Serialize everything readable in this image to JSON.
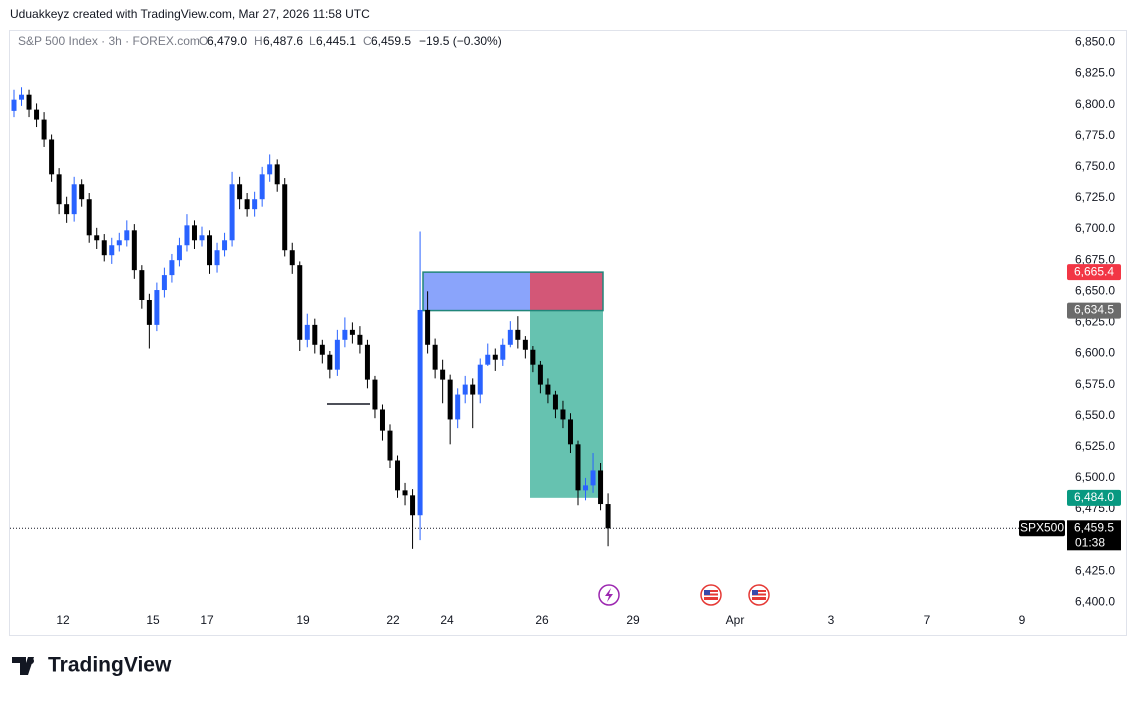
{
  "header": {
    "credit": "Uduakkeyz created with TradingView.com, Mar 27, 2026 11:58 UTC"
  },
  "chart_data": {
    "type": "candlestick",
    "symbol": "S&P 500 Index · 3h · FOREX.com",
    "ohlc_legend": {
      "o_key": "O",
      "o": "6,479.0",
      "h_key": "H",
      "h": "6,487.6",
      "l_key": "L",
      "l": "6,445.1",
      "c_key": "C",
      "c": "6,459.5",
      "change": "−19.5 (−0.30%)"
    },
    "up_color": "#2962ff",
    "down_color": "#000000",
    "open": [
      6795,
      6804,
      6808,
      6796,
      6788,
      6772,
      6744,
      6720,
      6712,
      6736,
      6724,
      6695,
      6691,
      6679,
      6687,
      6691,
      6699,
      6667,
      6643,
      6623,
      6651,
      6663,
      6675,
      6687,
      6703,
      6691,
      6695,
      6671,
      6683,
      6691,
      6736,
      6724,
      6716,
      6724,
      6744,
      6752,
      6736,
      6683,
      6671,
      6611,
      6623,
      6607,
      6599,
      6587,
      6611,
      6619,
      6615,
      6607,
      6579,
      6555,
      6538,
      6514,
      6490,
      6486,
      6470,
      6635,
      6607,
      6587,
      6579,
      6547,
      6567,
      6575,
      6567,
      6591,
      6599,
      6595,
      6607,
      6619,
      6611,
      6603,
      6591,
      6575,
      6567,
      6555,
      6547,
      6527,
      6490,
      6494,
      6506,
      6479
    ],
    "high": [
      6812,
      6814,
      6812,
      6801,
      6794,
      6776,
      6749,
      6726,
      6742,
      6740,
      6729,
      6701,
      6696,
      6693,
      6697,
      6707,
      6704,
      6671,
      6648,
      6657,
      6669,
      6680,
      6693,
      6712,
      6707,
      6702,
      6699,
      6689,
      6697,
      6746,
      6742,
      6729,
      6730,
      6750,
      6760,
      6756,
      6741,
      6689,
      6674,
      6632,
      6628,
      6611,
      6602,
      6619,
      6629,
      6625,
      6622,
      6611,
      6582,
      6559,
      6543,
      6518,
      6496,
      6491,
      6698,
      6650,
      6612,
      6595,
      6583,
      6572,
      6582,
      6580,
      6596,
      6608,
      6604,
      6612,
      6626,
      6630,
      6614,
      6606,
      6594,
      6580,
      6570,
      6562,
      6552,
      6530,
      6500,
      6520,
      6512,
      6487.6
    ],
    "low": [
      6790,
      6799,
      6790,
      6782,
      6766,
      6738,
      6712,
      6705,
      6706,
      6718,
      6689,
      6684,
      6674,
      6672,
      6682,
      6686,
      6660,
      6636,
      6604,
      6618,
      6645,
      6657,
      6670,
      6682,
      6684,
      6686,
      6664,
      6665,
      6678,
      6686,
      6716,
      6710,
      6710,
      6718,
      6738,
      6730,
      6678,
      6664,
      6602,
      6605,
      6600,
      6592,
      6580,
      6582,
      6605,
      6608,
      6600,
      6572,
      6548,
      6530,
      6508,
      6484,
      6478,
      6443,
      6450,
      6600,
      6580,
      6560,
      6527,
      6540,
      6560,
      6540,
      6560,
      6590,
      6586,
      6590,
      6605,
      6604,
      6596,
      6585,
      6568,
      6560,
      6548,
      6540,
      6520,
      6478,
      6482,
      6488,
      6474,
      6445.1
    ],
    "close": [
      6804,
      6808,
      6796,
      6788,
      6772,
      6744,
      6720,
      6712,
      6736,
      6724,
      6695,
      6691,
      6679,
      6687,
      6691,
      6699,
      6667,
      6643,
      6623,
      6651,
      6663,
      6675,
      6687,
      6703,
      6691,
      6695,
      6671,
      6683,
      6691,
      6736,
      6724,
      6716,
      6724,
      6744,
      6752,
      6736,
      6683,
      6671,
      6611,
      6623,
      6607,
      6599,
      6587,
      6611,
      6619,
      6615,
      6607,
      6579,
      6555,
      6538,
      6514,
      6490,
      6486,
      6470,
      6635,
      6607,
      6587,
      6579,
      6547,
      6567,
      6575,
      6567,
      6591,
      6599,
      6595,
      6607,
      6619,
      6611,
      6603,
      6591,
      6575,
      6567,
      6555,
      6547,
      6527,
      6490,
      6494,
      6506,
      6479,
      6459.5
    ],
    "position": {
      "stop": 6665.4,
      "entry": 6634.5,
      "target": 6484.0,
      "value_labels": {
        "stop": "6,665.4",
        "entry": "6,634.5",
        "target": "6,484.0"
      }
    },
    "last_price": {
      "ticker": "SPX500",
      "value": 6459.5,
      "value_label": "6,459.5",
      "countdown": "01:38"
    },
    "ylim": [
      6385,
      6860
    ],
    "yticks": [
      {
        "value": 6400,
        "label": "6,400.0"
      },
      {
        "value": 6425,
        "label": "6,425.0"
      },
      {
        "value": 6450,
        "label": "6,450.0"
      },
      {
        "value": 6475,
        "label": "6,475.0"
      },
      {
        "value": 6500,
        "label": "6,500.0"
      },
      {
        "value": 6525,
        "label": "6,525.0"
      },
      {
        "value": 6550,
        "label": "6,550.0"
      },
      {
        "value": 6575,
        "label": "6,575.0"
      },
      {
        "value": 6600,
        "label": "6,600.0"
      },
      {
        "value": 6625,
        "label": "6,625.0"
      },
      {
        "value": 6650,
        "label": "6,650.0"
      },
      {
        "value": 6675,
        "label": "6,675.0"
      },
      {
        "value": 6700,
        "label": "6,700.0"
      },
      {
        "value": 6725,
        "label": "6,725.0"
      },
      {
        "value": 6750,
        "label": "6,750.0"
      },
      {
        "value": 6775,
        "label": "6,775.0"
      },
      {
        "value": 6800,
        "label": "6,800.0"
      },
      {
        "value": 6825,
        "label": "6,825.0"
      },
      {
        "value": 6850,
        "label": "6,850.0"
      }
    ],
    "xtick_labels": [
      "12",
      "15",
      "17",
      "19",
      "22",
      "24",
      "26",
      "29",
      "Apr",
      "3",
      "7",
      "9"
    ]
  },
  "footer": {
    "brand": "TradingView"
  }
}
